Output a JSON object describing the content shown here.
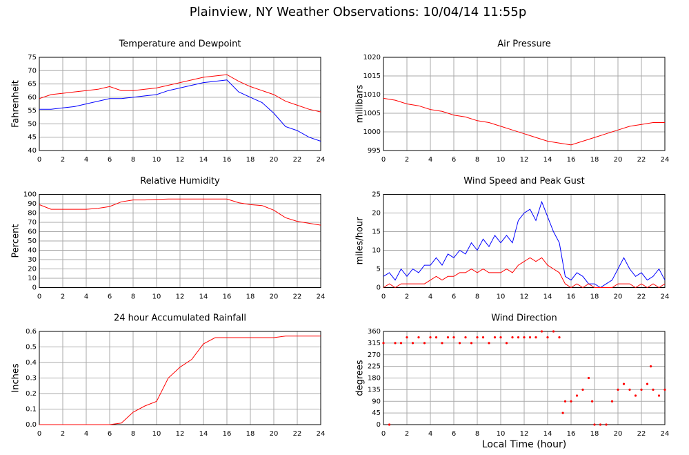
{
  "title": "Plainview, NY Weather Observations: 10/04/14 11:55p",
  "x_label": "Local Time (hour)",
  "chart_data": [
    {
      "type": "line",
      "title": "Temperature and Dewpoint",
      "y_label": "Fahrenheit",
      "x": [
        0,
        1,
        2,
        3,
        4,
        5,
        6,
        7,
        8,
        9,
        10,
        11,
        12,
        13,
        14,
        15,
        16,
        17,
        18,
        19,
        20,
        21,
        22,
        23,
        24
      ],
      "series": [
        {
          "color": "#ff0000",
          "values": [
            59.5,
            61,
            61.5,
            62,
            62.5,
            63,
            64,
            62.5,
            62.5,
            63,
            63.5,
            64.5,
            65.5,
            66.5,
            67.5,
            68,
            68.5,
            66,
            64,
            62.5,
            61,
            58.5,
            57,
            55.5,
            54.5
          ]
        },
        {
          "color": "#0000ff",
          "values": [
            55.5,
            55.5,
            56,
            56.5,
            57.5,
            58.5,
            59.5,
            59.5,
            60,
            60.5,
            61,
            62.5,
            63.5,
            64.5,
            65.5,
            66,
            66.5,
            62,
            60,
            58,
            54,
            49,
            47.5,
            45,
            43.5
          ]
        }
      ],
      "xlim": [
        0,
        24
      ],
      "xticks": [
        0,
        2,
        4,
        6,
        8,
        10,
        12,
        14,
        16,
        18,
        20,
        22,
        24
      ],
      "ylim": [
        40,
        75
      ],
      "yticks": [
        40,
        45,
        50,
        55,
        60,
        65,
        70,
        75
      ],
      "grid": true
    },
    {
      "type": "line",
      "title": "Air Pressure",
      "y_label": "millibars",
      "x": [
        0,
        1,
        2,
        3,
        4,
        5,
        6,
        7,
        8,
        9,
        10,
        11,
        12,
        13,
        14,
        15,
        16,
        17,
        18,
        19,
        20,
        21,
        22,
        23,
        24
      ],
      "series": [
        {
          "color": "#ff0000",
          "values": [
            1009,
            1008.5,
            1007.5,
            1007,
            1006,
            1005.5,
            1004.5,
            1004,
            1003,
            1002.5,
            1001.5,
            1000.5,
            999.5,
            998.5,
            997.5,
            997,
            996.5,
            997.5,
            998.5,
            999.5,
            1000.5,
            1001.5,
            1002,
            1002.5,
            1002.5
          ]
        }
      ],
      "xlim": [
        0,
        24
      ],
      "xticks": [
        0,
        2,
        4,
        6,
        8,
        10,
        12,
        14,
        16,
        18,
        20,
        22,
        24
      ],
      "ylim": [
        995,
        1020
      ],
      "yticks": [
        995,
        1000,
        1005,
        1010,
        1015,
        1020
      ],
      "grid": true
    },
    {
      "type": "line",
      "title": "Relative Humidity",
      "y_label": "Percent",
      "x": [
        0,
        1,
        2,
        3,
        4,
        5,
        6,
        7,
        8,
        9,
        10,
        11,
        12,
        13,
        14,
        15,
        16,
        17,
        18,
        19,
        20,
        21,
        22,
        23,
        24
      ],
      "series": [
        {
          "color": "#ff0000",
          "values": [
            89,
            84,
            84,
            84,
            84,
            85,
            87,
            92,
            94,
            94,
            94.5,
            95,
            95,
            95,
            95,
            95,
            95,
            91,
            89,
            88,
            83,
            75,
            71,
            69,
            67
          ]
        }
      ],
      "xlim": [
        0,
        24
      ],
      "xticks": [
        0,
        2,
        4,
        6,
        8,
        10,
        12,
        14,
        16,
        18,
        20,
        22,
        24
      ],
      "ylim": [
        0,
        100
      ],
      "yticks": [
        0,
        10,
        20,
        30,
        40,
        50,
        60,
        70,
        80,
        90,
        100
      ],
      "grid": true
    },
    {
      "type": "line",
      "title": "Wind Speed and Peak Gust",
      "y_label": "miles/hour",
      "x": [
        0,
        0.5,
        1,
        1.5,
        2,
        2.5,
        3,
        3.5,
        4,
        4.5,
        5,
        5.5,
        6,
        6.5,
        7,
        7.5,
        8,
        8.5,
        9,
        9.5,
        10,
        10.5,
        11,
        11.5,
        12,
        12.5,
        13,
        13.5,
        14,
        14.5,
        15,
        15.5,
        16,
        16.5,
        17,
        17.5,
        18,
        18.5,
        19,
        19.5,
        20,
        20.5,
        21,
        21.5,
        22,
        22.5,
        23,
        23.5,
        24
      ],
      "series": [
        {
          "color": "#0000ff",
          "values": [
            3,
            4,
            2,
            5,
            3,
            5,
            4,
            6,
            6,
            8,
            6,
            9,
            8,
            10,
            9,
            12,
            10,
            13,
            11,
            14,
            12,
            14,
            12,
            18,
            20,
            21,
            18,
            23,
            19,
            15,
            12,
            3,
            2,
            4,
            3,
            1,
            1,
            0,
            1,
            2,
            5,
            8,
            5,
            3,
            4,
            2,
            3,
            5,
            2
          ]
        },
        {
          "color": "#ff0000",
          "values": [
            0,
            1,
            0,
            1,
            1,
            1,
            1,
            1,
            2,
            3,
            2,
            3,
            3,
            4,
            4,
            5,
            4,
            5,
            4,
            4,
            4,
            5,
            4,
            6,
            7,
            8,
            7,
            8,
            6,
            5,
            4,
            1,
            0,
            1,
            0,
            1,
            0,
            0,
            0,
            0,
            1,
            1,
            1,
            0,
            1,
            0,
            1,
            0,
            1
          ]
        }
      ],
      "xlim": [
        0,
        24
      ],
      "xticks": [
        0,
        2,
        4,
        6,
        8,
        10,
        12,
        14,
        16,
        18,
        20,
        22,
        24
      ],
      "ylim": [
        0,
        25
      ],
      "yticks": [
        0,
        5,
        10,
        15,
        20,
        25
      ],
      "grid": true
    },
    {
      "type": "line",
      "title": "24 hour Accumulated Rainfall",
      "y_label": "Inches",
      "x": [
        0,
        1,
        2,
        3,
        4,
        5,
        6,
        7,
        8,
        9,
        10,
        11,
        12,
        13,
        14,
        15,
        16,
        17,
        18,
        19,
        20,
        21,
        22,
        23,
        24
      ],
      "series": [
        {
          "color": "#ff0000",
          "values": [
            0,
            0,
            0,
            0,
            0,
            0,
            0,
            0.01,
            0.08,
            0.12,
            0.15,
            0.3,
            0.37,
            0.42,
            0.52,
            0.56,
            0.56,
            0.56,
            0.56,
            0.56,
            0.56,
            0.57,
            0.57,
            0.57,
            0.57
          ]
        }
      ],
      "xlim": [
        0,
        24
      ],
      "xticks": [
        0,
        2,
        4,
        6,
        8,
        10,
        12,
        14,
        16,
        18,
        20,
        22,
        24
      ],
      "ylim": [
        0,
        0.6
      ],
      "yticks": [
        {
          "value": 0,
          "label": "0.0"
        },
        0.1,
        0.2,
        0.3,
        0.4,
        0.5,
        0.6
      ],
      "grid": true
    },
    {
      "type": "scatter",
      "title": "Wind Direction",
      "y_label": "degrees",
      "color": "#ff0000",
      "x": [
        0,
        0.5,
        1,
        1.5,
        2,
        2.5,
        3,
        3.5,
        4,
        4.5,
        5,
        5.5,
        6,
        6.5,
        7,
        7.5,
        8,
        8.5,
        9,
        9.5,
        10,
        10.5,
        11,
        11.5,
        12,
        12.5,
        13,
        13.5,
        14,
        14.5,
        15,
        15.3,
        15.5,
        16,
        16.5,
        17,
        17.5,
        17.8,
        18,
        18.5,
        19,
        19.5,
        20,
        20.5,
        21,
        21.5,
        22,
        22.5,
        22.8,
        23,
        23.5,
        24
      ],
      "values": [
        315,
        0,
        315,
        315,
        337,
        315,
        337,
        315,
        337,
        337,
        315,
        337,
        337,
        315,
        337,
        315,
        337,
        337,
        315,
        337,
        337,
        315,
        337,
        337,
        337,
        337,
        337,
        360,
        337,
        360,
        337,
        45,
        90,
        90,
        112,
        135,
        180,
        90,
        0,
        0,
        0,
        90,
        135,
        157,
        135,
        112,
        135,
        157,
        225,
        135,
        112,
        135
      ],
      "xlim": [
        0,
        24
      ],
      "xticks": [
        0,
        2,
        4,
        6,
        8,
        10,
        12,
        14,
        16,
        18,
        20,
        22,
        24
      ],
      "ylim": [
        0,
        360
      ],
      "yticks": [
        0,
        45,
        90,
        135,
        180,
        225,
        270,
        315,
        360
      ],
      "grid": true
    }
  ]
}
